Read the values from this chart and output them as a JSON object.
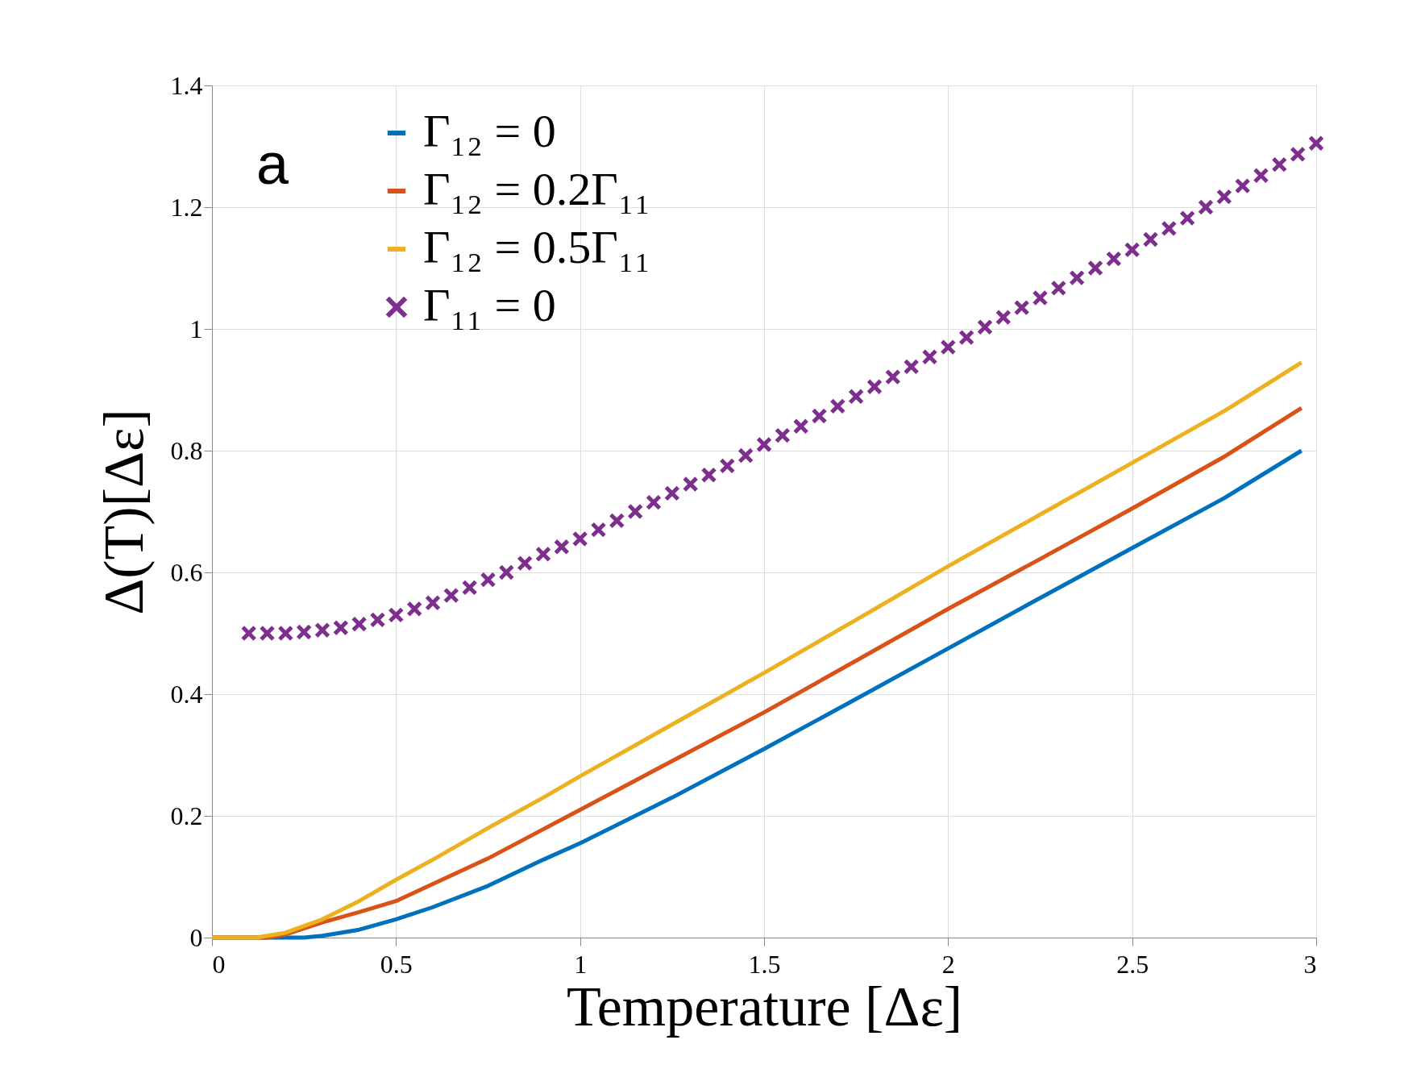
{
  "chart_data": {
    "type": "line",
    "xlabel": "Temperature [Δε]",
    "ylabel": "Δ(T)[Δε]",
    "annotations": [
      "a"
    ],
    "xlim": [
      0,
      3
    ],
    "ylim": [
      0,
      1.4
    ],
    "xticks": [
      0,
      0.5,
      1,
      1.5,
      2,
      2.5,
      3
    ],
    "yticks": [
      0,
      0.2,
      0.4,
      0.6,
      0.8,
      1,
      1.2,
      1.4
    ],
    "grid": true,
    "legend": "top left",
    "line_style": "solid",
    "series": [
      {
        "name": "Γ₁₂ = 0",
        "color": "#0072bd",
        "marker": "none",
        "x": [
          0,
          0.1,
          0.2,
          0.25,
          0.3,
          0.4,
          0.5,
          0.6,
          0.75,
          0.9,
          1.0,
          1.25,
          1.5,
          1.75,
          2.0,
          2.25,
          2.5,
          2.75,
          2.96
        ],
        "values": [
          0,
          0,
          0,
          0,
          0.003,
          0.013,
          0.03,
          0.05,
          0.085,
          0.128,
          0.155,
          0.23,
          0.31,
          0.392,
          0.475,
          0.558,
          0.64,
          0.722,
          0.8
        ]
      },
      {
        "name": "Γ₁₂ = 0.2Γ₁₁",
        "color": "#d95319",
        "marker": "none",
        "x": [
          0,
          0.1,
          0.15,
          0.2,
          0.25,
          0.3,
          0.4,
          0.5,
          0.6,
          0.75,
          0.9,
          1.0,
          1.25,
          1.5,
          1.75,
          2.0,
          2.25,
          2.5,
          2.75,
          2.96
        ],
        "values": [
          0,
          0,
          0,
          0.005,
          0.015,
          0.025,
          0.042,
          0.06,
          0.088,
          0.13,
          0.178,
          0.21,
          0.29,
          0.37,
          0.455,
          0.54,
          0.622,
          0.705,
          0.79,
          0.87
        ]
      },
      {
        "name": "Γ₁₂ = 0.5Γ₁₁",
        "color": "#edb120",
        "marker": "none",
        "x": [
          0,
          0.1,
          0.12,
          0.2,
          0.3,
          0.4,
          0.5,
          0.6,
          0.75,
          0.9,
          1.0,
          1.25,
          1.5,
          1.75,
          2.0,
          2.25,
          2.5,
          2.75,
          2.96
        ],
        "values": [
          0,
          0,
          0,
          0.008,
          0.03,
          0.06,
          0.095,
          0.128,
          0.18,
          0.23,
          0.265,
          0.35,
          0.435,
          0.522,
          0.61,
          0.695,
          0.78,
          0.865,
          0.945
        ]
      },
      {
        "name": "Γ₁₁ = 0",
        "type": "scatter",
        "color": "#7e2f8e",
        "marker": "cross",
        "x": [
          0.1,
          0.15,
          0.2,
          0.25,
          0.3,
          0.35,
          0.4,
          0.45,
          0.5,
          0.55,
          0.6,
          0.65,
          0.7,
          0.75,
          0.8,
          0.85,
          0.9,
          0.95,
          1.0,
          1.05,
          1.1,
          1.15,
          1.2,
          1.25,
          1.3,
          1.35,
          1.4,
          1.45,
          1.5,
          1.55,
          1.6,
          1.65,
          1.7,
          1.75,
          1.8,
          1.85,
          1.9,
          1.95,
          2.0,
          2.05,
          2.1,
          2.15,
          2.2,
          2.25,
          2.3,
          2.35,
          2.4,
          2.45,
          2.5,
          2.55,
          2.6,
          2.65,
          2.7,
          2.75,
          2.8,
          2.85,
          2.9,
          2.95,
          3.0
        ],
        "values": [
          0.5,
          0.5,
          0.5,
          0.502,
          0.505,
          0.509,
          0.515,
          0.522,
          0.53,
          0.54,
          0.55,
          0.562,
          0.575,
          0.588,
          0.6,
          0.615,
          0.63,
          0.642,
          0.655,
          0.67,
          0.685,
          0.7,
          0.715,
          0.73,
          0.745,
          0.76,
          0.775,
          0.792,
          0.81,
          0.825,
          0.84,
          0.857,
          0.873,
          0.889,
          0.905,
          0.921,
          0.938,
          0.954,
          0.97,
          0.986,
          1.003,
          1.019,
          1.035,
          1.051,
          1.067,
          1.084,
          1.1,
          1.115,
          1.13,
          1.147,
          1.165,
          1.182,
          1.2,
          1.217,
          1.235,
          1.252,
          1.27,
          1.287,
          1.305
        ]
      }
    ]
  }
}
